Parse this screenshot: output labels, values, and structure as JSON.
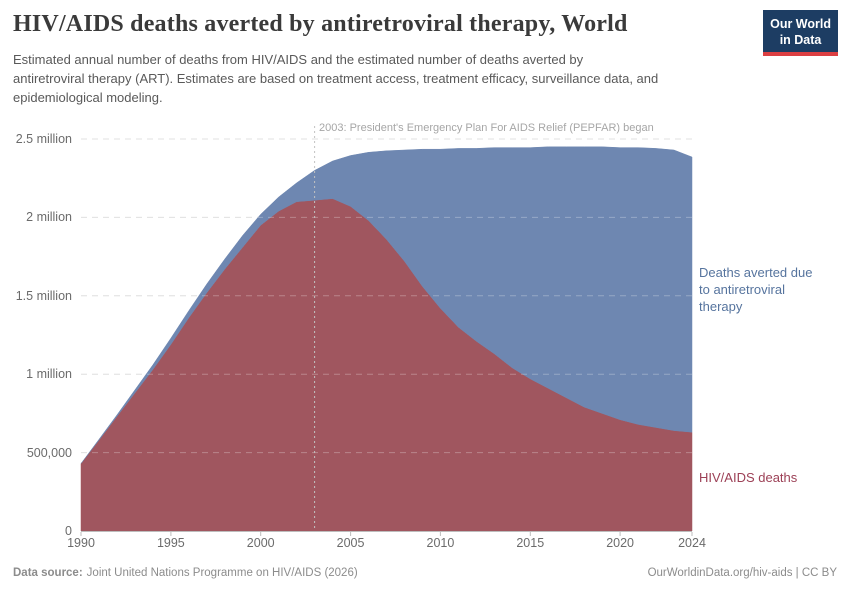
{
  "header": {
    "title": "HIV/AIDS deaths averted by antiretroviral therapy, World",
    "subtitle_lines": [
      "Estimated annual number of deaths from HIV/AIDS and the estimated number of deaths averted by",
      "antiretroviral therapy (ART). Estimates are based on treatment access, treatment efficacy, surveillance data, and",
      "epidemiological modeling."
    ]
  },
  "logo": {
    "line1": "Our World",
    "line2": "in Data"
  },
  "annotation": {
    "text": "2003: President's Emergency Plan For AIDS Relief (PEPFAR) began",
    "year": 2003
  },
  "series_labels": {
    "averted_lines": [
      "Deaths averted due",
      "to antiretroviral",
      "therapy"
    ],
    "deaths": "HIV/AIDS deaths"
  },
  "footer": {
    "data_source_label": "Data source:",
    "data_source_value": "Joint United Nations Programme on HIV/AIDS (2026)",
    "right": "OurWorldinData.org/hiv-aids | CC BY"
  },
  "colors": {
    "deaths_fill": "#a0565f",
    "averted_fill": "#6e87b1",
    "deaths_label": "#9c4056",
    "averted_label": "#56749e",
    "gridline": "#d6d6d6",
    "axis_text": "#6b6b6b",
    "annotation_text": "#a6a6a6",
    "annotation_line": "#c2c2c2",
    "axis_line": "#bdbdbd",
    "logo_bg": "#1d3d63",
    "logo_bar": "#dc3f42"
  },
  "chart_data": {
    "type": "area",
    "stacked": true,
    "title": "HIV/AIDS deaths averted by antiretroviral therapy, World",
    "xlabel": "",
    "ylabel": "",
    "grid": true,
    "legend_position": "inline-right",
    "x": [
      1990,
      1991,
      1992,
      1993,
      1994,
      1995,
      1996,
      1997,
      1998,
      1999,
      2000,
      2001,
      2002,
      2003,
      2004,
      2005,
      2006,
      2007,
      2008,
      2009,
      2010,
      2011,
      2012,
      2013,
      2014,
      2015,
      2016,
      2017,
      2018,
      2019,
      2020,
      2021,
      2022,
      2023,
      2024
    ],
    "series": [
      {
        "name": "HIV/AIDS deaths",
        "color": "#a0565f",
        "values": [
          430000,
          580000,
          730000,
          880000,
          1030000,
          1190000,
          1360000,
          1520000,
          1670000,
          1810000,
          1950000,
          2040000,
          2100000,
          2110000,
          2120000,
          2070000,
          1980000,
          1860000,
          1720000,
          1560000,
          1420000,
          1300000,
          1210000,
          1130000,
          1040000,
          970000,
          910000,
          850000,
          790000,
          750000,
          710000,
          680000,
          660000,
          640000,
          630000
        ]
      },
      {
        "name": "Deaths averted due to antiretroviral therapy",
        "color": "#6e87b1",
        "values": [
          0,
          5000,
          10000,
          20000,
          30000,
          40000,
          45000,
          55000,
          65000,
          75000,
          70000,
          90000,
          120000,
          190000,
          240000,
          325000,
          435000,
          565000,
          710000,
          875000,
          1015000,
          1140000,
          1230000,
          1315000,
          1405000,
          1475000,
          1540000,
          1600000,
          1660000,
          1700000,
          1735000,
          1765000,
          1780000,
          1790000,
          1755000
        ]
      }
    ],
    "y_axis": {
      "lim": [
        0,
        2500000
      ],
      "ticks": [
        {
          "value": 0,
          "label": "0"
        },
        {
          "value": 500000,
          "label": "500,000"
        },
        {
          "value": 1000000,
          "label": "1 million"
        },
        {
          "value": 1500000,
          "label": "1.5 million"
        },
        {
          "value": 2000000,
          "label": "2 million"
        },
        {
          "value": 2500000,
          "label": "2.5 million"
        }
      ]
    },
    "x_axis": {
      "ticks": [
        1990,
        1995,
        2000,
        2005,
        2010,
        2015,
        2020,
        2024
      ]
    },
    "annotation_line_year": 2003
  }
}
